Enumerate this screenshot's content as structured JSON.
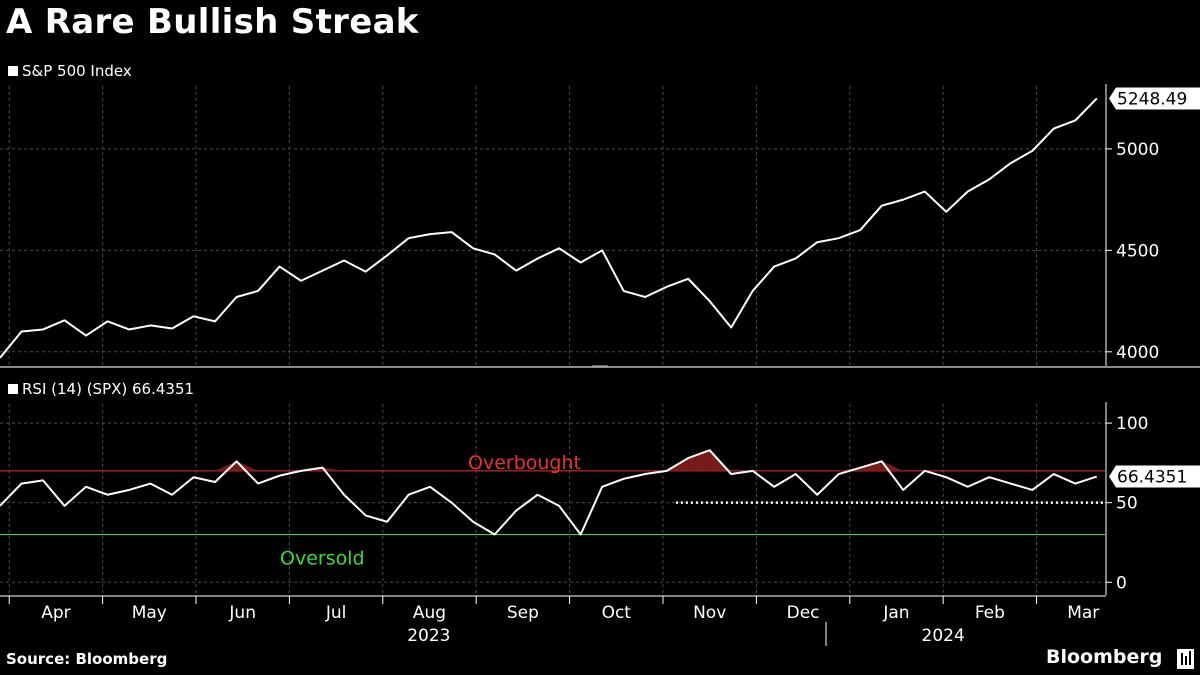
{
  "title": "A Rare Bullish Streak",
  "source": "Source: Bloomberg",
  "brand": "Bloomberg",
  "colors": {
    "background": "#000000",
    "line": "#ffffff",
    "overbought": "#e8342a",
    "oversold": "#3fd93a",
    "overbought_fill": "#7a1b1b"
  },
  "chart_data": [
    {
      "type": "line",
      "legend": "S&P 500 Index",
      "last_value_label": "5248.49",
      "ylim": [
        3930,
        5310
      ],
      "yticks": [
        4000,
        4500,
        5000
      ],
      "grid": true,
      "series": [
        {
          "name": "S&P 500 Index",
          "x": [
            0,
            7,
            14,
            21,
            28,
            35,
            42,
            49,
            56,
            63,
            70,
            77,
            84,
            91,
            98,
            105,
            112,
            119,
            126,
            133,
            140,
            147,
            154,
            161,
            168,
            175,
            182,
            189,
            196,
            203,
            210,
            217,
            224,
            231,
            238,
            245,
            252,
            259,
            266,
            273,
            280,
            287,
            294,
            301,
            308,
            315,
            322,
            329,
            336,
            343,
            350,
            357
          ],
          "values": [
            3970,
            4100,
            4110,
            4155,
            4080,
            4150,
            4110,
            4130,
            4115,
            4175,
            4150,
            4270,
            4300,
            4420,
            4350,
            4400,
            4450,
            4395,
            4475,
            4560,
            4580,
            4590,
            4510,
            4480,
            4400,
            4460,
            4510,
            4440,
            4500,
            4300,
            4270,
            4320,
            4360,
            4250,
            4120,
            4300,
            4420,
            4460,
            4540,
            4560,
            4600,
            4720,
            4750,
            4790,
            4690,
            4790,
            4850,
            4930,
            4990,
            5100,
            5140,
            5248.49
          ]
        }
      ]
    },
    {
      "type": "line",
      "legend": "RSI (14) (SPX) 66.4351",
      "last_value_label": "66.4351",
      "ylim": [
        -8,
        112
      ],
      "yticks": [
        0,
        50,
        100
      ],
      "grid": true,
      "reference_lines": [
        {
          "label": "Overbought",
          "value": 70
        },
        {
          "label": "Oversold",
          "value": 30
        }
      ],
      "series": [
        {
          "name": "RSI (14) (SPX)",
          "x": [
            0,
            7,
            14,
            21,
            28,
            35,
            42,
            49,
            56,
            63,
            70,
            77,
            84,
            91,
            98,
            105,
            112,
            119,
            126,
            133,
            140,
            147,
            154,
            161,
            168,
            175,
            182,
            189,
            196,
            203,
            210,
            217,
            224,
            231,
            238,
            245,
            252,
            259,
            266,
            273,
            280,
            287,
            294,
            301,
            308,
            315,
            322,
            329,
            336,
            343,
            350,
            357
          ],
          "values": [
            48,
            62,
            64,
            48,
            60,
            55,
            58,
            62,
            55,
            66,
            63,
            76,
            62,
            67,
            70,
            72,
            55,
            42,
            38,
            55,
            60,
            50,
            38,
            30,
            45,
            55,
            48,
            30,
            60,
            65,
            68,
            70,
            78,
            83,
            68,
            70,
            60,
            68,
            55,
            68,
            72,
            76,
            58,
            70,
            66,
            60,
            66,
            62,
            58,
            68,
            62,
            66.4351
          ]
        }
      ]
    }
  ],
  "x_axis": {
    "months": [
      "Apr",
      "May",
      "Jun",
      "Jul",
      "Aug",
      "Sep",
      "Oct",
      "Nov",
      "Dec",
      "Jan",
      "Feb",
      "Mar"
    ],
    "years": [
      "2023",
      "2024"
    ]
  }
}
